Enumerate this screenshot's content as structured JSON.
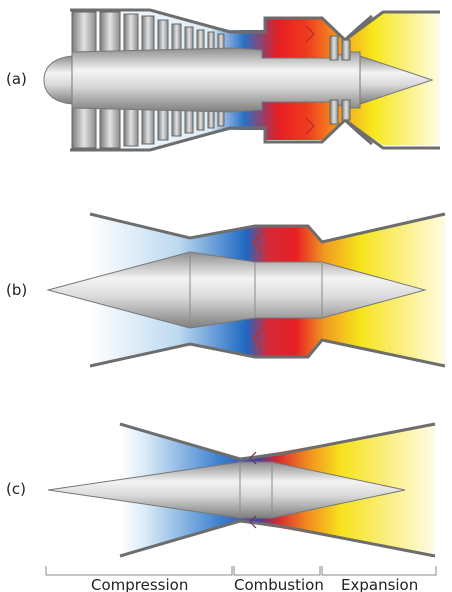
{
  "panels": [
    {
      "label": "(a)"
    },
    {
      "label": "(b)"
    },
    {
      "label": "(c)"
    }
  ],
  "stages": {
    "compression": "Compression",
    "combustion": "Combustion",
    "expansion": "Expansion"
  },
  "colors": {
    "cold": "#1f6fc4",
    "cold_light": "#cfe6f6",
    "hot": "#e8201f",
    "warm": "#f59a1c",
    "exhaust": "#f5e81a",
    "casing": "#6d6d6d",
    "shaft": "#c9c9c9"
  }
}
